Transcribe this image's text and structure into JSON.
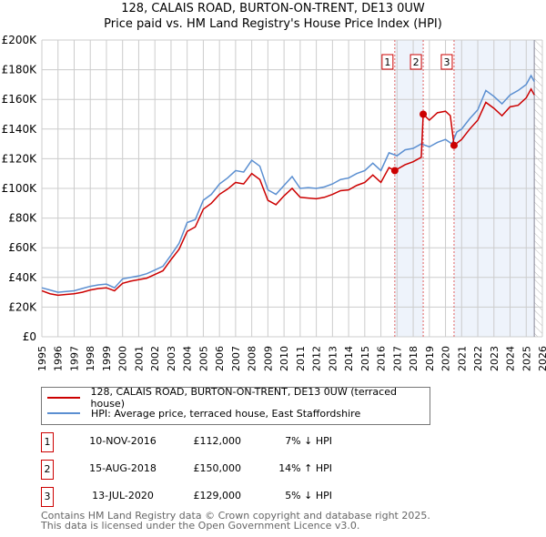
{
  "chart_data": {
    "type": "line",
    "title": "128, CALAIS ROAD, BURTON-ON-TRENT, DE13 0UW",
    "subtitle": "Price paid vs. HM Land Registry's House Price Index (HPI)",
    "xlim": [
      1995,
      2026
    ],
    "ylim": [
      0,
      200000
    ],
    "yticks": [
      0,
      20000,
      40000,
      60000,
      80000,
      100000,
      120000,
      140000,
      160000,
      180000,
      200000
    ],
    "ytick_labels": [
      "£0",
      "£20K",
      "£40K",
      "£60K",
      "£80K",
      "£100K",
      "£120K",
      "£140K",
      "£160K",
      "£180K",
      "£200K"
    ],
    "xticks": [
      "1995",
      "1996",
      "1997",
      "1998",
      "1999",
      "2000",
      "2001",
      "2002",
      "2003",
      "2004",
      "2005",
      "2006",
      "2007",
      "2008",
      "2009",
      "2010",
      "2011",
      "2012",
      "2013",
      "2014",
      "2015",
      "2016",
      "2017",
      "2018",
      "2019",
      "2020",
      "2021",
      "2022",
      "2023",
      "2024",
      "2025",
      "2026"
    ],
    "grid": true,
    "legend_placement": "below",
    "colors": {
      "property": "#cc0000",
      "hpi": "#5b8fd1",
      "shade": "#eef3fb",
      "vline": "#e06060"
    },
    "series": [
      {
        "name": "128, CALAIS ROAD, BURTON-ON-TRENT, DE13 0UW (terraced house)",
        "x": [
          1995,
          1995.5,
          1996,
          1996.5,
          1997,
          1997.5,
          1998,
          1998.5,
          1999,
          1999.5,
          2000,
          2000.5,
          2001,
          2001.5,
          2002,
          2002.5,
          2003,
          2003.5,
          2004,
          2004.5,
          2005,
          2005.5,
          2006,
          2006.5,
          2007,
          2007.5,
          2008,
          2008.5,
          2009,
          2009.5,
          2010,
          2010.5,
          2011,
          2011.5,
          2012,
          2012.5,
          2013,
          2013.5,
          2014,
          2014.5,
          2015,
          2015.5,
          2016,
          2016.5,
          2016.86,
          2017.5,
          2018,
          2018.5,
          2018.62,
          2019,
          2019.5,
          2020,
          2020.3,
          2020.53,
          2021,
          2021.5,
          2022,
          2022.5,
          2023,
          2023.5,
          2024,
          2024.5,
          2025,
          2025.3,
          2025.5
        ],
        "y": [
          31000,
          29000,
          28000,
          28500,
          29000,
          30000,
          31500,
          32500,
          33000,
          31000,
          36000,
          37500,
          38500,
          39500,
          42000,
          44500,
          52000,
          59000,
          71000,
          74000,
          86000,
          90000,
          96000,
          99500,
          104000,
          103000,
          110000,
          106000,
          92000,
          89000,
          95000,
          100000,
          94000,
          93500,
          93000,
          94000,
          96000,
          98500,
          99000,
          102000,
          104000,
          109000,
          104000,
          114000,
          112000,
          116000,
          118000,
          121000,
          150000,
          146000,
          151000,
          152000,
          149000,
          129000,
          133000,
          140000,
          146000,
          158000,
          154000,
          149000,
          155000,
          156000,
          161000,
          167000,
          163000
        ]
      },
      {
        "name": "HPI: Average price, terraced house, East Staffordshire",
        "x": [
          1995,
          1995.5,
          1996,
          1996.5,
          1997,
          1997.5,
          1998,
          1998.5,
          1999,
          1999.5,
          2000,
          2000.5,
          2001,
          2001.5,
          2002,
          2002.5,
          2003,
          2003.5,
          2004,
          2004.5,
          2005,
          2005.5,
          2006,
          2006.5,
          2007,
          2007.5,
          2008,
          2008.5,
          2009,
          2009.5,
          2010,
          2010.5,
          2011,
          2011.5,
          2012,
          2012.5,
          2013,
          2013.5,
          2014,
          2014.5,
          2015,
          2015.5,
          2016,
          2016.5,
          2017,
          2017.5,
          2018,
          2018.5,
          2019,
          2019.5,
          2020,
          2020.4,
          2020.7,
          2021,
          2021.5,
          2022,
          2022.5,
          2023,
          2023.5,
          2024,
          2024.5,
          2025,
          2025.3,
          2025.5
        ],
        "y": [
          33000,
          31500,
          30000,
          30500,
          31000,
          32500,
          34000,
          35000,
          35500,
          33000,
          39000,
          40000,
          41000,
          42500,
          45000,
          47500,
          55000,
          63000,
          77000,
          79000,
          92000,
          96000,
          103000,
          107000,
          112000,
          111000,
          119000,
          115000,
          99000,
          96000,
          102000,
          108000,
          100000,
          100500,
          100000,
          101000,
          103000,
          106000,
          107000,
          110000,
          112000,
          117000,
          112000,
          124000,
          122000,
          126000,
          127000,
          130000,
          128000,
          131000,
          133000,
          130000,
          138000,
          140000,
          147000,
          153000,
          166000,
          162000,
          157000,
          163000,
          166000,
          170000,
          176000,
          172000
        ]
      }
    ],
    "sales": [
      {
        "id": "1",
        "x": 2016.86,
        "price": 112000,
        "date": "10-NOV-2016",
        "price_label": "£112,000",
        "hpi": "7% ↓ HPI"
      },
      {
        "id": "2",
        "x": 2018.62,
        "price": 150000,
        "date": "15-AUG-2018",
        "price_label": "£150,000",
        "hpi": "14% ↑ HPI"
      },
      {
        "id": "3",
        "x": 2020.53,
        "price": 129000,
        "date": "13-JUL-2020",
        "price_label": "£129,000",
        "hpi": "5% ↓ HPI"
      }
    ],
    "data_end": 2025.5
  },
  "footer": {
    "line1": "Contains HM Land Registry data © Crown copyright and database right 2025.",
    "line2": "This data is licensed under the Open Government Licence v3.0."
  }
}
